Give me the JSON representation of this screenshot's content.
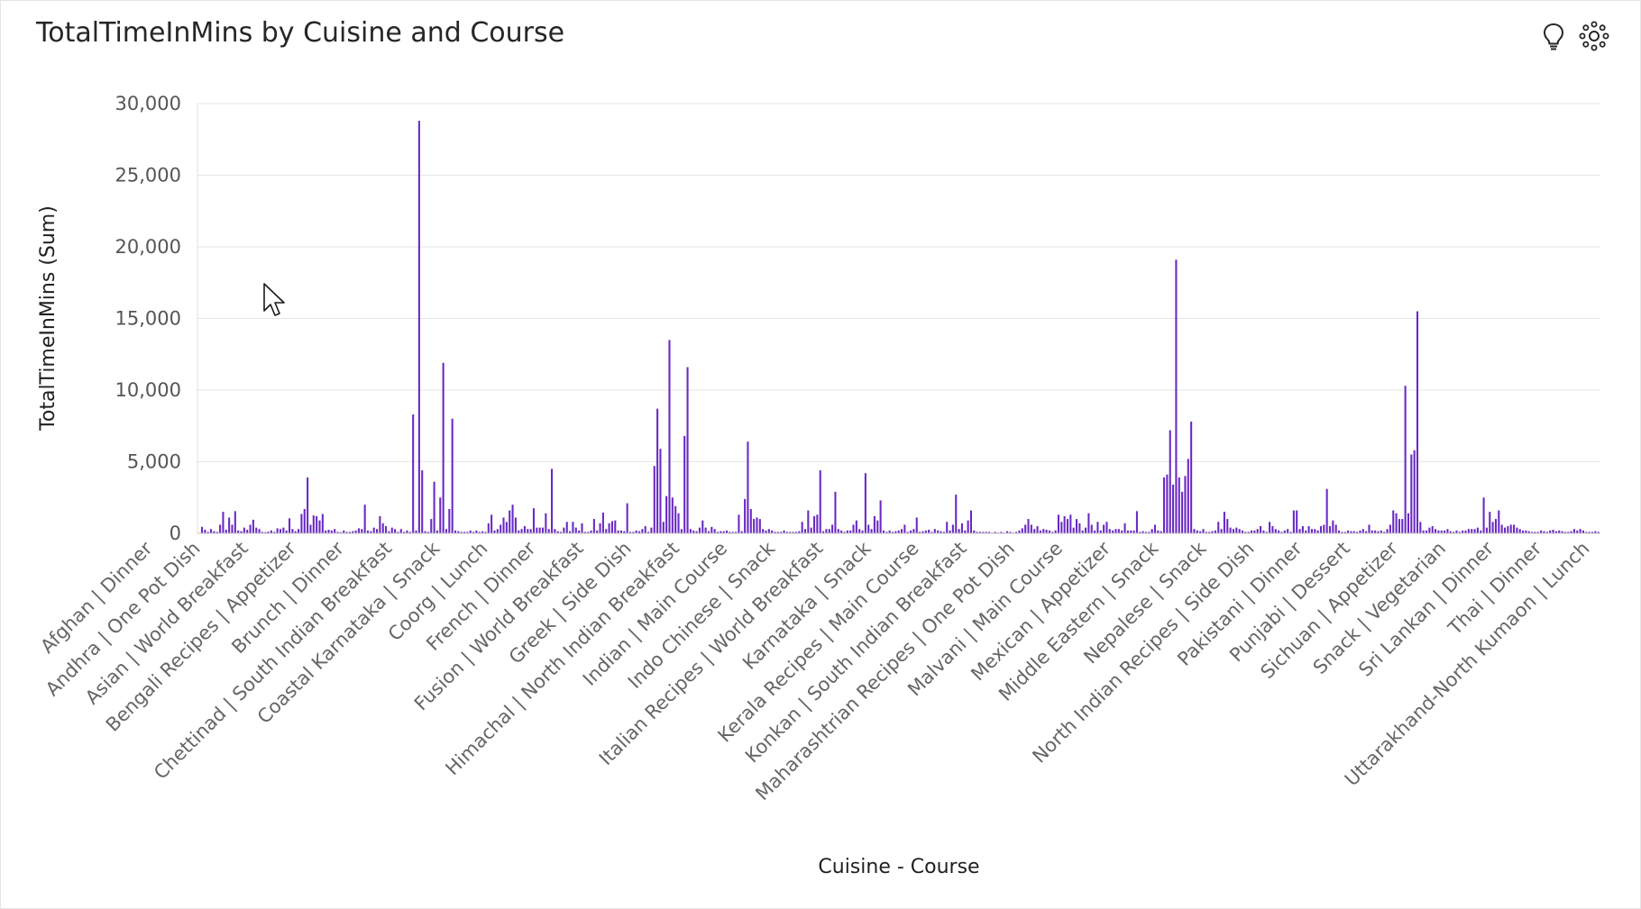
{
  "card": {
    "title": "TotalTimeInMins by Cuisine and Course"
  },
  "toolbar": {
    "icons": [
      "lightbulb-icon",
      "ai-insights-icon"
    ]
  },
  "colors": {
    "bar": "#6929c4",
    "grid": "#e6e6e6",
    "text": "#262626"
  },
  "chart_data": {
    "type": "bar",
    "title": "TotalTimeInMins by Cuisine and Course",
    "xlabel": "Cuisine - Course",
    "ylabel": "TotalTimeInMins (Sum)",
    "ylim": [
      0,
      30000
    ],
    "yticks": [
      0,
      5000,
      10000,
      15000,
      20000,
      25000,
      30000
    ],
    "ytick_labels": [
      "0",
      "5,000",
      "10,000",
      "15,000",
      "20,000",
      "25,000",
      "30,000"
    ],
    "grid": true,
    "legend": "none",
    "x_tick_labels": [
      "Afghan | Dinner",
      "Andhra | One Pot Dish",
      "Asian | World Breakfast",
      "Bengali Recipes | Appetizer",
      "Brunch | Dinner",
      "Chettinad | South Indian Breakfast",
      "Coastal Karnataka | Snack",
      "Coorg | Lunch",
      "French | Dinner",
      "Fusion | World Breakfast",
      "Greek | Side Dish",
      "Himachal | North Indian Breakfast",
      "Indian | Main Course",
      "Indo Chinese | Snack",
      "Italian Recipes | World Breakfast",
      "Karnataka | Snack",
      "Kerala Recipes | Main Course",
      "Konkan | South Indian Breakfast",
      "Maharashtrian Recipes | One Pot Dish",
      "Malvani | Main Course",
      "Mexican | Appetizer",
      "Middle Eastern | Snack",
      "Nepalese | Snack",
      "North Indian Recipes | Side Dish",
      "Pakistani | Dinner",
      "Punjabi | Dessert",
      "Sichuan | Appetizer",
      "Snack | Vegetarian",
      "Sri Lankan | Dinner",
      "Thai | Dinner",
      "Uttarakhand-North Kumaon | Lunch"
    ],
    "values": [
      450,
      250,
      100,
      300,
      150,
      100,
      600,
      1500,
      250,
      1100,
      600,
      1550,
      200,
      150,
      400,
      250,
      600,
      950,
      400,
      300,
      100,
      80,
      120,
      200,
      100,
      350,
      300,
      400,
      200,
      1050,
      300,
      150,
      300,
      1350,
      1700,
      3900,
      600,
      1250,
      1200,
      900,
      1350,
      200,
      250,
      200,
      300,
      100,
      80,
      200,
      100,
      100,
      150,
      200,
      350,
      300,
      2000,
      200,
      150,
      400,
      300,
      1200,
      700,
      500,
      150,
      400,
      300,
      100,
      300,
      100,
      200,
      100,
      8300,
      200,
      28800,
      4400,
      150,
      100,
      1000,
      3600,
      200,
      2500,
      11900,
      300,
      1700,
      8000,
      200,
      150,
      100,
      100,
      100,
      200,
      100,
      200,
      100,
      150,
      100,
      700,
      1300,
      200,
      300,
      600,
      1100,
      800,
      1600,
      2000,
      1100,
      200,
      300,
      500,
      300,
      300,
      1750,
      400,
      400,
      400,
      1400,
      300,
      4500,
      300,
      150,
      100,
      400,
      800,
      150,
      800,
      400,
      200,
      700,
      100,
      100,
      200,
      1000,
      200,
      700,
      1450,
      300,
      700,
      850,
      900,
      200,
      200,
      150,
      2100,
      100,
      100,
      200,
      150,
      300,
      500,
      100,
      400,
      4700,
      8700,
      5900,
      800,
      2600,
      13500,
      2500,
      1900,
      1400,
      300,
      6800,
      11600,
      300,
      200,
      150,
      400,
      900,
      400,
      150,
      450,
      300,
      100,
      150,
      150,
      200,
      100,
      100,
      100,
      1300,
      150,
      2400,
      6400,
      1700,
      1000,
      1100,
      1000,
      300,
      200,
      300,
      200,
      100,
      100,
      100,
      200,
      100,
      100,
      100,
      100,
      150,
      800,
      300,
      1600,
      400,
      1200,
      1300,
      4400,
      150,
      300,
      300,
      600,
      2900,
      300,
      200,
      100,
      200,
      200,
      600,
      900,
      300,
      200,
      4200,
      600,
      300,
      1200,
      900,
      2300,
      200,
      100,
      200,
      100,
      150,
      200,
      300,
      600,
      100,
      200,
      300,
      1100,
      100,
      150,
      200,
      250,
      100,
      300,
      200,
      150,
      100,
      800,
      200,
      600,
      2700,
      300,
      700,
      200,
      900,
      1600,
      200,
      100,
      100,
      100,
      100,
      100,
      50,
      100,
      50,
      100,
      50,
      150,
      100,
      50,
      100,
      200,
      350,
      600,
      1000,
      600,
      300,
      500,
      200,
      300,
      250,
      200,
      100,
      200,
      1300,
      800,
      1200,
      1000,
      1300,
      400,
      1000,
      700,
      200,
      400,
      1400,
      600,
      200,
      800,
      200,
      600,
      800,
      300,
      200,
      300,
      300,
      200,
      700,
      200,
      200,
      200,
      1550,
      100,
      150,
      100,
      100,
      300,
      600,
      200,
      150,
      3900,
      4100,
      7200,
      3400,
      19100,
      3900,
      2900,
      4000,
      5200,
      7800,
      300,
      200,
      150,
      300,
      100,
      100,
      150,
      200,
      800,
      300,
      1500,
      1000,
      400,
      300,
      400,
      300,
      200,
      100,
      100,
      200,
      200,
      300,
      500,
      200,
      100,
      800,
      500,
      300,
      200,
      100,
      200,
      300,
      100,
      1600,
      1600,
      300,
      500,
      200,
      500,
      300,
      300,
      200,
      500,
      600,
      3100,
      500,
      900,
      600,
      200,
      100,
      100,
      200,
      150,
      150,
      100,
      200,
      300,
      150,
      600,
      200,
      200,
      150,
      200,
      100,
      300,
      600,
      1600,
      1400,
      1000,
      1000,
      10300,
      1400,
      5500,
      5800,
      15500,
      800,
      200,
      200,
      400,
      500,
      300,
      200,
      200,
      200,
      300,
      150,
      100,
      200,
      100,
      200,
      200,
      300,
      300,
      300,
      400,
      200,
      2500,
      400,
      1500,
      800,
      1000,
      1600,
      600,
      400,
      500,
      600,
      600,
      400,
      300,
      200,
      200,
      150,
      100,
      100,
      100,
      200,
      150,
      100,
      200,
      250,
      150,
      200,
      150,
      100,
      100,
      150,
      300,
      200,
      300,
      200,
      100,
      100,
      100,
      150,
      100
    ]
  }
}
